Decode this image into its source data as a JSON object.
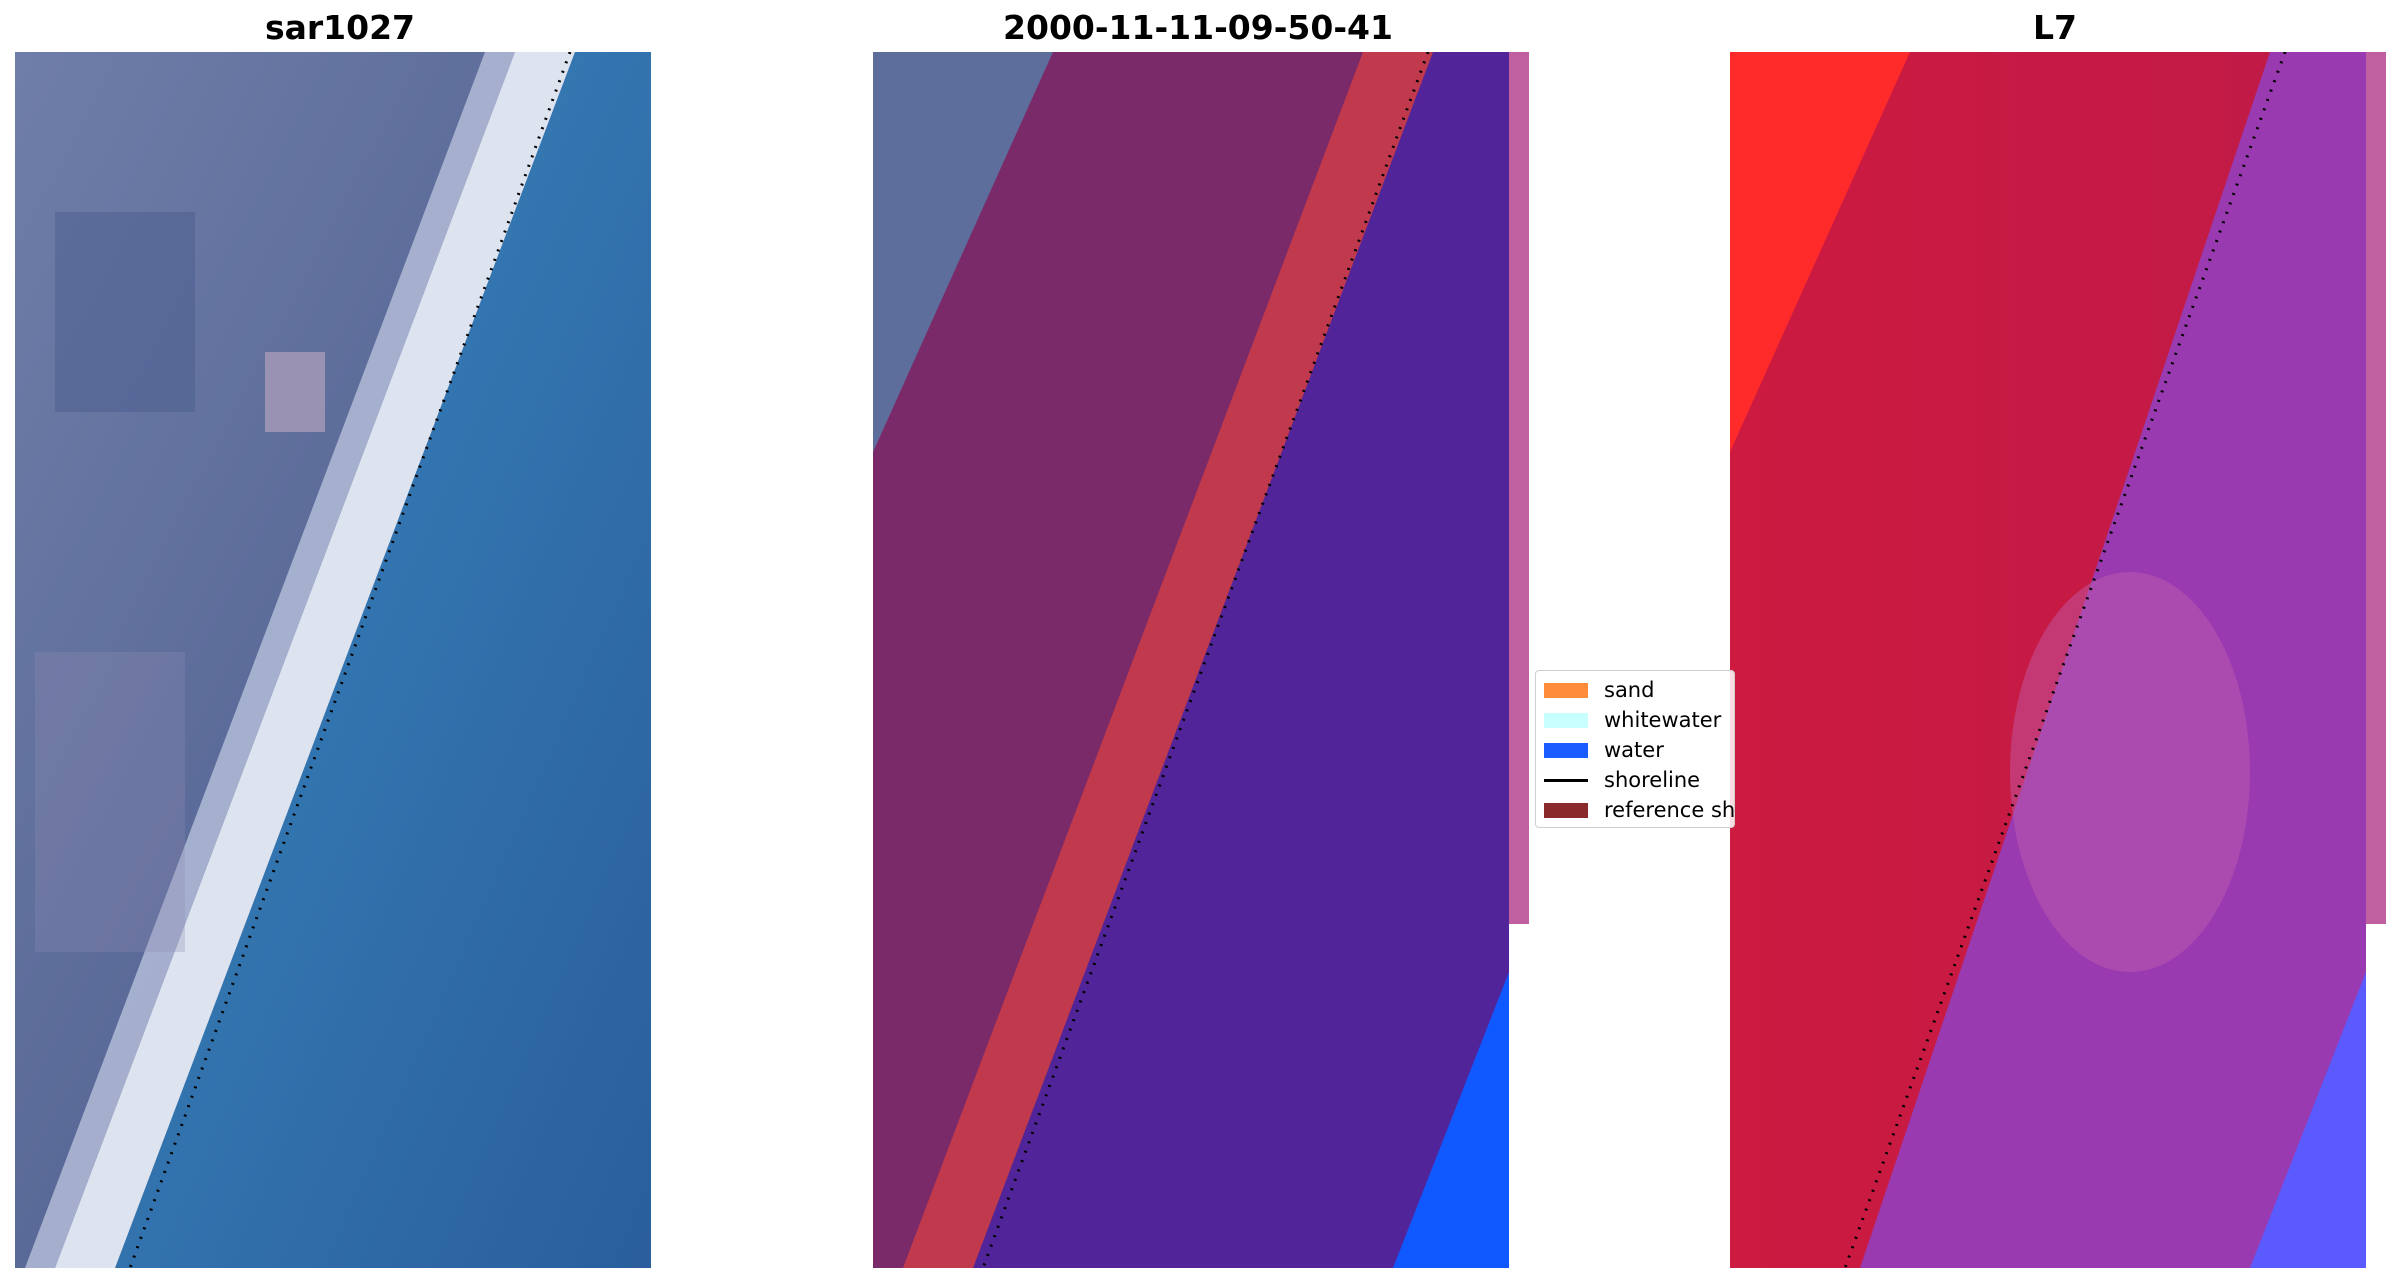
{
  "figure": {
    "panels": [
      {
        "title": "sar1027"
      },
      {
        "title": "2000-11-11-09-50-41"
      },
      {
        "title": "L7"
      }
    ],
    "legend": {
      "items": [
        {
          "label": "sand",
          "color": "#ff8c3a",
          "kind": "patch"
        },
        {
          "label": "whitewater",
          "color": "#c8ffff",
          "kind": "patch"
        },
        {
          "label": "water",
          "color": "#1a5cff",
          "kind": "patch"
        },
        {
          "label": "shoreline",
          "color": "#000000",
          "kind": "line"
        },
        {
          "label": "reference shoreline buffer",
          "color": "#8b2a2a",
          "kind": "patch"
        }
      ]
    }
  }
}
